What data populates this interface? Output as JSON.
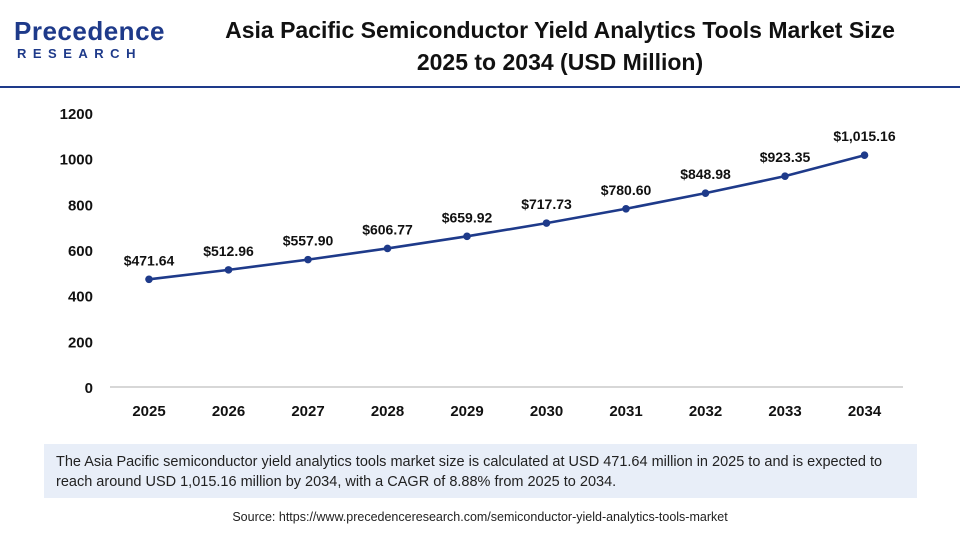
{
  "header": {
    "logo_main": "Precedence",
    "logo_sub": "RESEARCH",
    "title_line1": "Asia Pacific Semiconductor Yield Analytics Tools Market  Size",
    "title_line2": "2025 to 2034 (USD Million)"
  },
  "chart_data": {
    "type": "line",
    "title": "Asia Pacific Semiconductor Yield Analytics Tools Market  Size 2025 to 2034 (USD Million)",
    "categories": [
      "2025",
      "2026",
      "2027",
      "2028",
      "2029",
      "2030",
      "2031",
      "2032",
      "2033",
      "2034"
    ],
    "values": [
      471.64,
      512.96,
      557.9,
      606.77,
      659.92,
      717.73,
      780.6,
      848.98,
      923.35,
      1015.16
    ],
    "data_labels": [
      "$471.64",
      "$512.96",
      "$557.90",
      "$606.77",
      "$659.92",
      "$717.73",
      "$780.60",
      "$848.98",
      "$923.35",
      "$1,015.16"
    ],
    "yticks": [
      "0",
      "200",
      "400",
      "600",
      "800",
      "1000",
      "1200"
    ],
    "ylim": [
      0,
      1200
    ],
    "grid": false,
    "line_color": "#1e3a8a"
  },
  "note": "The Asia Pacific semiconductor yield analytics tools market size is calculated at USD 471.64 million in 2025 to and is expected to reach around USD 1,015.16 million by 2034, with a CAGR of 8.88% from 2025 to 2034.",
  "source": "Source: https://www.precedenceresearch.com/semiconductor-yield-analytics-tools-market"
}
